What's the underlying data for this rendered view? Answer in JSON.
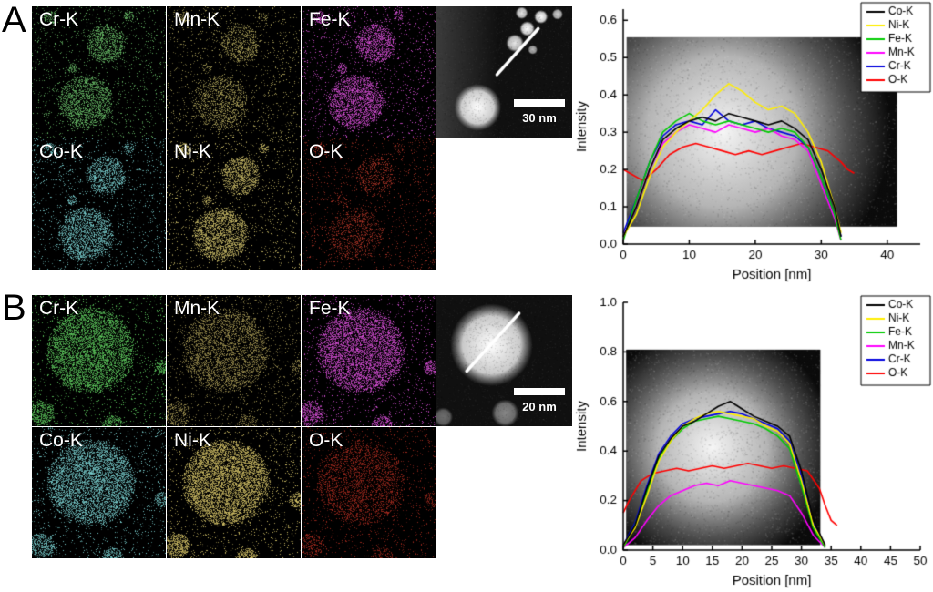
{
  "figure": {
    "background": "#ffffff"
  },
  "panels": [
    {
      "label": "A",
      "tiles": [
        {
          "label": "Cr-K",
          "color": "#6abf69",
          "density": 0.5
        },
        {
          "label": "Mn-K",
          "color": "#b3a85c",
          "density": 0.38
        },
        {
          "label": "Fe-K",
          "color": "#d94fd9",
          "density": 0.55
        },
        {
          "label": "Co-K",
          "color": "#79cfcf",
          "density": 0.5
        },
        {
          "label": "Ni-K",
          "color": "#cfc06a",
          "density": 0.55
        },
        {
          "label": "O-K",
          "color": "#b03426",
          "density": 0.3
        }
      ],
      "map_particles": [
        [
          0.4,
          0.73,
          0.21
        ],
        [
          0.55,
          0.28,
          0.15
        ],
        [
          0.13,
          0.08,
          0.05
        ],
        [
          0.3,
          0.47,
          0.04
        ],
        [
          0.72,
          0.07,
          0.04
        ]
      ],
      "stem": {
        "scale_label": "30 nm",
        "left_band": true,
        "blobs": [
          [
            0.3,
            0.77,
            0.17,
            1
          ],
          [
            0.57,
            0.28,
            0.065,
            0.9
          ],
          [
            0.66,
            0.17,
            0.055,
            1
          ],
          [
            0.76,
            0.08,
            0.05,
            1
          ],
          [
            0.88,
            0.06,
            0.04,
            0.8
          ],
          [
            0.7,
            0.33,
            0.035,
            0.7
          ],
          [
            0.62,
            0.05,
            0.045,
            0.9
          ]
        ],
        "line": [
          0.44,
          0.52,
          0.74,
          0.17
        ]
      }
    },
    {
      "label": "B",
      "tiles": [
        {
          "label": "Cr-K",
          "color": "#5ecb5e",
          "density": 0.55
        },
        {
          "label": "Mn-K",
          "color": "#a89a55",
          "density": 0.4
        },
        {
          "label": "Fe-K",
          "color": "#d94fd9",
          "density": 0.55
        },
        {
          "label": "Co-K",
          "color": "#79cfcf",
          "density": 0.55
        },
        {
          "label": "Ni-K",
          "color": "#d6c468",
          "density": 0.6
        },
        {
          "label": "O-K",
          "color": "#a52a1e",
          "density": 0.35
        }
      ],
      "map_particles": [
        [
          0.44,
          0.42,
          0.33
        ],
        [
          0.07,
          0.9,
          0.1
        ],
        [
          0.97,
          0.55,
          0.06
        ],
        [
          0.6,
          0.99,
          0.08
        ]
      ],
      "stem": {
        "scale_label": "20 nm",
        "left_band": false,
        "blobs": [
          [
            0.4,
            0.38,
            0.3,
            1
          ],
          [
            0.5,
            0.9,
            0.1,
            0.5
          ],
          [
            0.05,
            0.93,
            0.07,
            0.4
          ]
        ],
        "line": [
          0.22,
          0.58,
          0.6,
          0.14
        ]
      }
    }
  ],
  "chart_data": [
    {
      "type": "line",
      "title": "",
      "xlabel": "Position [nm]",
      "ylabel": "Intensity",
      "xlim": [
        0,
        45
      ],
      "ylim": [
        0,
        0.63
      ],
      "xticks": [
        0,
        10,
        20,
        30,
        40
      ],
      "yticks": [
        0.0,
        0.1,
        0.2,
        0.3,
        0.4,
        0.5,
        0.6
      ],
      "grid": false,
      "legend_position": "top-right",
      "background_blob": {
        "x0": 0.5,
        "x1": 41.5,
        "y0": 0.047,
        "y1": 0.555,
        "cx": 15,
        "note": "STEM strip"
      },
      "series": [
        {
          "name": "Co-K",
          "color": "#000000",
          "x": [
            0,
            2,
            4,
            6,
            8,
            10,
            12,
            14,
            16,
            18,
            20,
            22,
            24,
            26,
            28,
            30,
            32,
            33
          ],
          "y": [
            0.02,
            0.1,
            0.2,
            0.28,
            0.31,
            0.33,
            0.34,
            0.33,
            0.35,
            0.34,
            0.33,
            0.32,
            0.33,
            0.31,
            0.28,
            0.2,
            0.1,
            0.02
          ]
        },
        {
          "name": "Ni-K",
          "color": "#ffee00",
          "x": [
            0,
            2,
            4,
            6,
            8,
            10,
            12,
            14,
            16,
            18,
            20,
            22,
            24,
            26,
            28,
            30,
            32,
            33
          ],
          "y": [
            0.02,
            0.08,
            0.18,
            0.26,
            0.3,
            0.33,
            0.36,
            0.4,
            0.43,
            0.41,
            0.38,
            0.36,
            0.37,
            0.35,
            0.3,
            0.22,
            0.1,
            0.03
          ]
        },
        {
          "name": "Fe-K",
          "color": "#00cc00",
          "x": [
            0,
            2,
            4,
            6,
            8,
            10,
            12,
            14,
            16,
            18,
            20,
            22,
            24,
            26,
            28,
            30,
            32,
            33
          ],
          "y": [
            0.01,
            0.12,
            0.22,
            0.3,
            0.33,
            0.35,
            0.33,
            0.32,
            0.33,
            0.32,
            0.31,
            0.3,
            0.31,
            0.3,
            0.26,
            0.18,
            0.08,
            0.01
          ]
        },
        {
          "name": "Mn-K",
          "color": "#ff00ff",
          "x": [
            0,
            2,
            4,
            6,
            8,
            10,
            12,
            14,
            16,
            18,
            20,
            22,
            24,
            26,
            28,
            30,
            32,
            33
          ],
          "y": [
            0.02,
            0.1,
            0.2,
            0.27,
            0.3,
            0.32,
            0.31,
            0.3,
            0.32,
            0.31,
            0.3,
            0.31,
            0.29,
            0.28,
            0.25,
            0.16,
            0.07,
            0.01
          ]
        },
        {
          "name": "Cr-K",
          "color": "#0000dd",
          "x": [
            0,
            2,
            4,
            6,
            8,
            10,
            12,
            14,
            16,
            18,
            20,
            22,
            24,
            26,
            28,
            30,
            32,
            33
          ],
          "y": [
            0.03,
            0.12,
            0.22,
            0.29,
            0.32,
            0.33,
            0.32,
            0.36,
            0.33,
            0.32,
            0.33,
            0.31,
            0.3,
            0.29,
            0.26,
            0.18,
            0.08,
            0.02
          ]
        },
        {
          "name": "O-K",
          "color": "#ff0000",
          "x": [
            0,
            1,
            3,
            5,
            7,
            9,
            11,
            13,
            15,
            17,
            19,
            21,
            23,
            25,
            27,
            29,
            31,
            33,
            34,
            35
          ],
          "y": [
            0.2,
            0.19,
            0.17,
            0.2,
            0.24,
            0.26,
            0.27,
            0.26,
            0.25,
            0.24,
            0.25,
            0.24,
            0.25,
            0.26,
            0.27,
            0.26,
            0.25,
            0.22,
            0.2,
            0.19
          ]
        }
      ]
    },
    {
      "type": "line",
      "title": "",
      "xlabel": "Position [nm]",
      "ylabel": "Intensity",
      "xlim": [
        0,
        50
      ],
      "ylim": [
        0,
        1.0
      ],
      "xticks": [
        0,
        5,
        10,
        15,
        20,
        25,
        30,
        35,
        40,
        45,
        50
      ],
      "yticks": [
        0.0,
        0.2,
        0.4,
        0.6,
        0.8,
        1.0
      ],
      "grid": false,
      "legend_position": "top-right",
      "background_blob": {
        "x0": 0.5,
        "x1": 33.2,
        "y0": 0.02,
        "y1": 0.81,
        "cx": 15,
        "note": "STEM strip"
      },
      "series": [
        {
          "name": "Co-K",
          "color": "#000000",
          "x": [
            0,
            2,
            4,
            6,
            8,
            10,
            12,
            14,
            16,
            18,
            20,
            22,
            24,
            26,
            28,
            30,
            32,
            34
          ],
          "y": [
            0.02,
            0.1,
            0.25,
            0.38,
            0.45,
            0.5,
            0.52,
            0.55,
            0.58,
            0.6,
            0.57,
            0.54,
            0.52,
            0.5,
            0.46,
            0.32,
            0.12,
            0.02
          ]
        },
        {
          "name": "Ni-K",
          "color": "#ffee00",
          "x": [
            0,
            2,
            4,
            6,
            8,
            10,
            12,
            14,
            16,
            18,
            20,
            22,
            24,
            26,
            28,
            30,
            32,
            34
          ],
          "y": [
            0.02,
            0.09,
            0.22,
            0.36,
            0.44,
            0.5,
            0.53,
            0.55,
            0.56,
            0.55,
            0.54,
            0.53,
            0.5,
            0.48,
            0.43,
            0.28,
            0.1,
            0.02
          ]
        },
        {
          "name": "Fe-K",
          "color": "#00cc00",
          "x": [
            0,
            2,
            4,
            6,
            8,
            10,
            12,
            14,
            16,
            18,
            20,
            22,
            24,
            26,
            28,
            30,
            32,
            34
          ],
          "y": [
            0.01,
            0.1,
            0.24,
            0.37,
            0.44,
            0.49,
            0.52,
            0.53,
            0.54,
            0.53,
            0.52,
            0.51,
            0.49,
            0.46,
            0.41,
            0.26,
            0.09,
            0.01
          ]
        },
        {
          "name": "Mn-K",
          "color": "#ff00ff",
          "x": [
            0,
            2,
            4,
            6,
            8,
            10,
            12,
            14,
            16,
            18,
            20,
            22,
            24,
            26,
            28,
            30,
            32,
            34
          ],
          "y": [
            0.01,
            0.05,
            0.12,
            0.18,
            0.22,
            0.24,
            0.26,
            0.27,
            0.26,
            0.28,
            0.27,
            0.26,
            0.25,
            0.24,
            0.22,
            0.15,
            0.06,
            0.01
          ]
        },
        {
          "name": "Cr-K",
          "color": "#0000dd",
          "x": [
            0,
            2,
            4,
            6,
            8,
            10,
            12,
            14,
            16,
            18,
            20,
            22,
            24,
            26,
            28,
            30,
            32,
            34
          ],
          "y": [
            0.02,
            0.11,
            0.26,
            0.39,
            0.46,
            0.51,
            0.53,
            0.54,
            0.55,
            0.56,
            0.55,
            0.53,
            0.51,
            0.49,
            0.44,
            0.3,
            0.11,
            0.02
          ]
        },
        {
          "name": "O-K",
          "color": "#ff0000",
          "x": [
            0,
            1,
            3,
            5,
            7,
            9,
            11,
            13,
            15,
            17,
            19,
            21,
            23,
            25,
            27,
            29,
            31,
            33,
            34,
            35,
            36
          ],
          "y": [
            0.15,
            0.2,
            0.28,
            0.31,
            0.32,
            0.33,
            0.32,
            0.33,
            0.34,
            0.33,
            0.34,
            0.35,
            0.34,
            0.33,
            0.34,
            0.33,
            0.32,
            0.25,
            0.18,
            0.12,
            0.1
          ]
        }
      ]
    }
  ]
}
